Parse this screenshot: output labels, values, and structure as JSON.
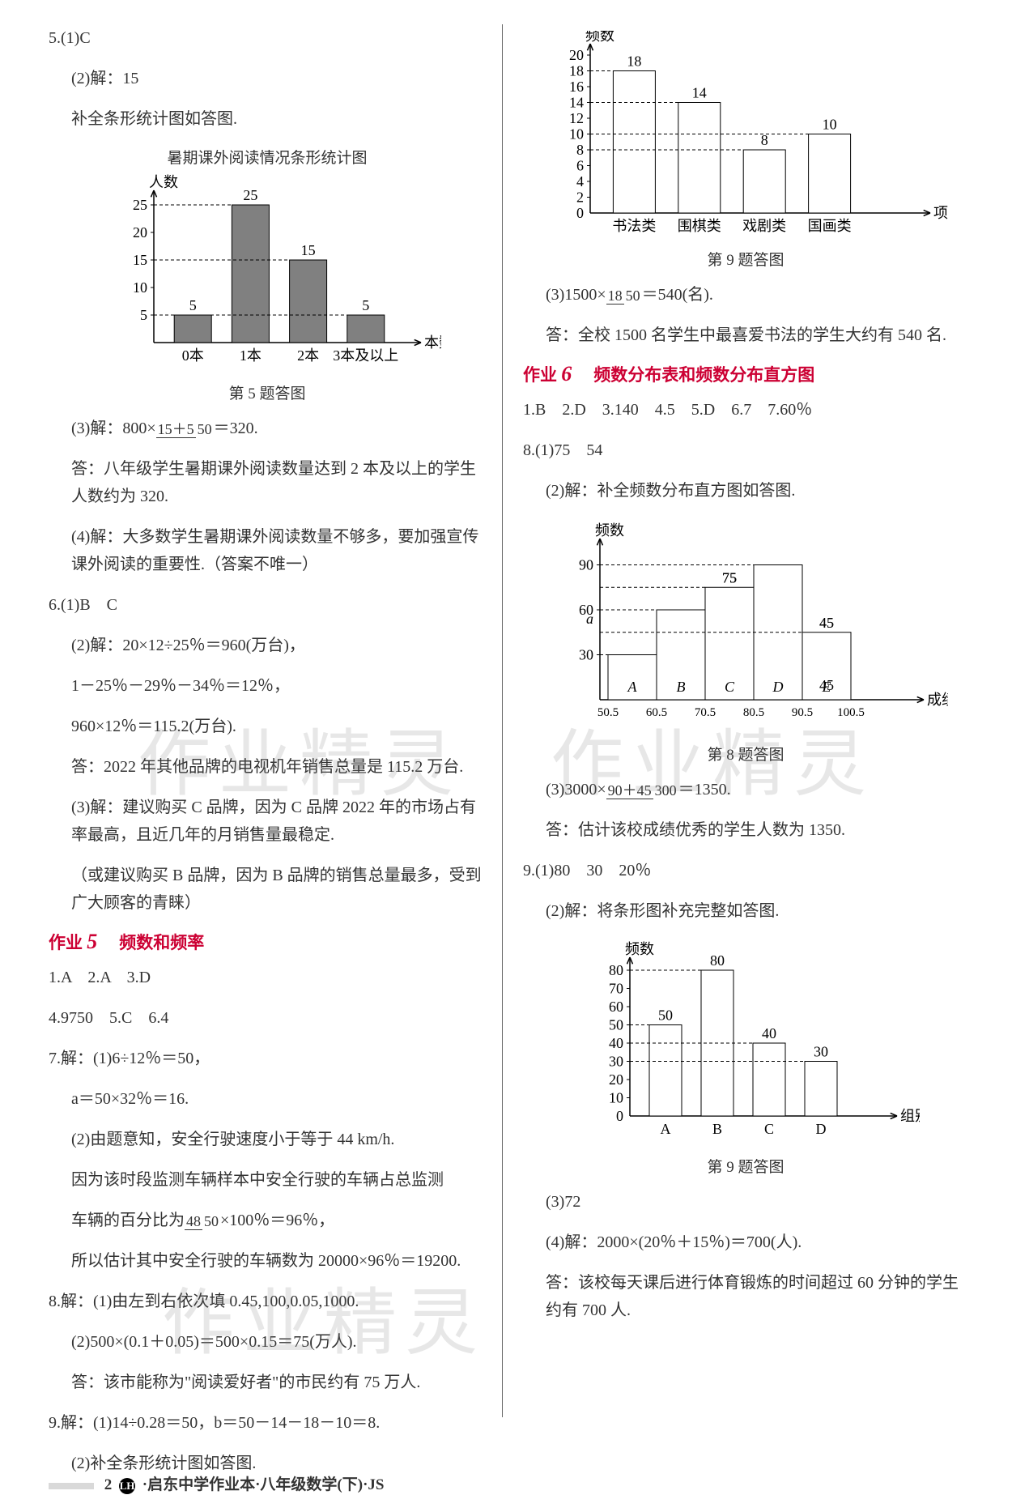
{
  "left": {
    "q5_1": "5.(1)C",
    "q5_2": "(2)解：15",
    "q5_2b": "补全条形统计图如答图.",
    "chart5_title": "暑期课外阅读情况条形统计图",
    "chart5": {
      "type": "bar",
      "y_label": "人数",
      "x_label": "本数",
      "categories": [
        "0本",
        "1本",
        "2本",
        "3本及以上"
      ],
      "values": [
        5,
        25,
        15,
        5
      ],
      "bar_color": "#808080",
      "axis_color": "#000000",
      "ylim": [
        0,
        25
      ],
      "ytick_step": 5,
      "label_fontsize": 18
    },
    "chart5_caption": "第 5 题答图",
    "q5_3a": "(3)解：800×",
    "q5_3_frac_top": "15＋5",
    "q5_3_frac_bot": "50",
    "q5_3b": "＝320.",
    "q5_3ans": "答：八年级学生暑期课外阅读数量达到 2 本及以上的学生人数约为 320.",
    "q5_4": "(4)解：大多数学生暑期课外阅读数量不够多，要加强宣传课外阅读的重要性.（答案不唯一）",
    "q6_1": "6.(1)B　C",
    "q6_2a": "(2)解：20×12÷25％＝960(万台)，",
    "q6_2b": "1－25％－29％－34％＝12％，",
    "q6_2c": "960×12％＝115.2(万台).",
    "q6_2ans": "答：2022 年其他品牌的电视机年销售总量是 115.2 万台.",
    "q6_3": "(3)解：建议购买 C 品牌，因为 C 品牌 2022 年的市场占有率最高，且近几年的月销售量最稳定.",
    "q6_3b": "（或建议购买 B 品牌，因为 B 品牌的销售总量最多，受到广大顾客的青睐）",
    "sec5": "频数和频率",
    "sec5_line1": "1.A　2.A　3.D",
    "sec5_line2": "4.9750　5.C　6.4",
    "q7_1": "7.解：(1)6÷12％＝50，",
    "q7_1b": "a＝50×32％＝16.",
    "q7_2a": "(2)由题意知，安全行驶速度小于等于 44 km/h.",
    "q7_2b": "因为该时段监测车辆样本中安全行驶的车辆占总监测",
    "q7_2c_a": "车辆的百分比为",
    "q7_2c_frac_top": "48",
    "q7_2c_frac_bot": "50",
    "q7_2c_b": "×100％＝96％，",
    "q7_2d": "所以估计其中安全行驶的车辆数为 20000×96％＝19200.",
    "q8_1": "8.解：(1)由左到右依次填 0.45,100,0.05,1000.",
    "q8_2": "(2)500×(0.1＋0.05)＝500×0.15＝75(万人).",
    "q8_2ans": "答：该市能称为\"阅读爱好者\"的市民约有 75 万人.",
    "q9_1": "9.解：(1)14÷0.28＝50，b＝50－14－18－10＝8.",
    "q9_2": "(2)补全条形统计图如答图."
  },
  "right": {
    "chart9": {
      "type": "bar",
      "y_label": "频数",
      "x_label": "项目类型",
      "categories": [
        "书法类",
        "围棋类",
        "戏剧类",
        "国画类"
      ],
      "values": [
        18,
        14,
        8,
        10
      ],
      "bar_color": "#ffffff",
      "bar_border": "#000000",
      "axis_color": "#000000",
      "ylim": [
        0,
        20
      ],
      "ytick_step": 2,
      "label_fontsize": 18
    },
    "chart9_caption": "第 9 题答图",
    "q9_3a": "(3)1500×",
    "q9_3_frac_top": "18",
    "q9_3_frac_bot": "50",
    "q9_3b": "＝540(名).",
    "q9_3ans": "答：全校 1500 名学生中最喜爱书法的学生大约有 540 名.",
    "sec6": "频数分布表和频数分布直方图",
    "sec6_line1": "1.B　2.D　3.140　4.5　5.D　6.7　7.60％",
    "q8r_1": "8.(1)75　54",
    "q8r_2": "(2)解：补全频数分布直方图如答图.",
    "chart8": {
      "type": "histogram",
      "y_label": "频数",
      "x_label": "成绩/分",
      "categories": [
        "A",
        "B",
        "C",
        "D",
        "E"
      ],
      "x_ticks": [
        "50.5",
        "60.5",
        "70.5",
        "80.5",
        "90.5",
        "100.5"
      ],
      "values": [
        30,
        60,
        75,
        90,
        45
      ],
      "special_label": "a",
      "bar_color": "#ffffff",
      "bar_border": "#000000",
      "axis_color": "#000000",
      "yticks": [
        30,
        60,
        90
      ],
      "label_fontsize": 18
    },
    "chart8_caption": "第 8 题答图",
    "q8r_3a": "(3)3000×",
    "q8r_3_frac_top": "90＋45",
    "q8r_3_frac_bot": "300",
    "q8r_3b": "＝1350.",
    "q8r_3ans": "答：估计该校成绩优秀的学生人数为 1350.",
    "q9r_1": "9.(1)80　30　20％",
    "q9r_2": "(2)解：将条形图补充完整如答图.",
    "chart9r": {
      "type": "bar",
      "y_label": "频数",
      "x_label": "组别",
      "categories": [
        "A",
        "B",
        "C",
        "D"
      ],
      "values": [
        50,
        80,
        40,
        30
      ],
      "bar_color": "#ffffff",
      "bar_border": "#000000",
      "axis_color": "#000000",
      "ylim": [
        0,
        80
      ],
      "ytick_step": 10,
      "label_fontsize": 18
    },
    "chart9r_caption": "第 9 题答图",
    "q9r_3": "(3)72",
    "q9r_4": "(4)解：2000×(20％＋15％)＝700(人).",
    "q9r_4ans": "答：该校每天课后进行体育锻炼的时间超过 60 分钟的学生约有 700 人."
  },
  "footer": {
    "page": "2",
    "badge": "LH",
    "text": "·启东中学作业本·八年级数学(下)·JS"
  },
  "watermarks": [
    "作业精灵",
    "作业精灵",
    "作业精灵"
  ]
}
